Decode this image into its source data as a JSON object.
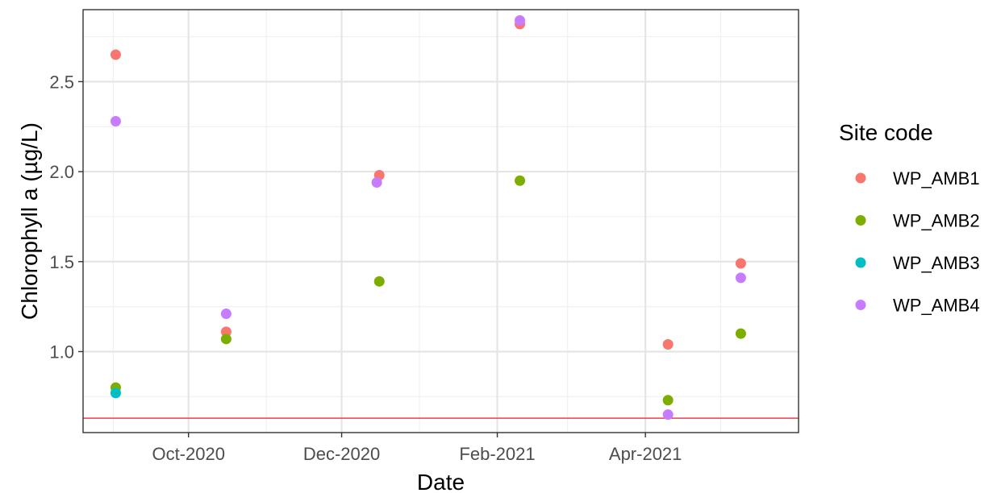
{
  "chart_data": {
    "type": "scatter",
    "xlabel": "Date",
    "ylabel": "Chlorophyll a (µg/L)",
    "x_tick_labels": [
      {
        "date": "2020-10-01",
        "label": "Oct-2020"
      },
      {
        "date": "2020-12-01",
        "label": "Dec-2020"
      },
      {
        "date": "2021-02-01",
        "label": "Feb-2021"
      },
      {
        "date": "2021-04-01",
        "label": "Apr-2021"
      }
    ],
    "x_minor_grid": [
      "2020-09-01",
      "2020-11-01",
      "2021-01-01",
      "2021-03-01",
      "2021-05-01"
    ],
    "xlim": [
      "2020-08-20",
      "2021-06-01"
    ],
    "y_ticks": [
      {
        "value": 1.0,
        "label": "1.0"
      },
      {
        "value": 1.5,
        "label": "1.5"
      },
      {
        "value": 2.0,
        "label": "2.0"
      },
      {
        "value": 2.5,
        "label": "2.5"
      }
    ],
    "y_minor_grid": [
      0.75,
      1.25,
      1.75,
      2.25,
      2.75
    ],
    "ylim": [
      0.55,
      2.9
    ],
    "grid": true,
    "legend": {
      "title": "Site code",
      "position": "right"
    },
    "reference_line": {
      "y": 0.63,
      "color": "#e8414b"
    },
    "series": [
      {
        "name": "WP_AMB1",
        "color": "#F8766D",
        "points": [
          {
            "x": "2020-09-02",
            "y": 2.65
          },
          {
            "x": "2020-10-16",
            "y": 1.11
          },
          {
            "x": "2020-12-16",
            "y": 1.98
          },
          {
            "x": "2021-02-10",
            "y": 2.82
          },
          {
            "x": "2021-04-10",
            "y": 1.04
          },
          {
            "x": "2021-05-09",
            "y": 1.49
          }
        ]
      },
      {
        "name": "WP_AMB2",
        "color": "#7CAE00",
        "points": [
          {
            "x": "2020-09-02",
            "y": 0.8
          },
          {
            "x": "2020-10-16",
            "y": 1.07
          },
          {
            "x": "2020-12-16",
            "y": 1.39
          },
          {
            "x": "2021-02-10",
            "y": 1.95
          },
          {
            "x": "2021-04-10",
            "y": 0.73
          },
          {
            "x": "2021-05-09",
            "y": 1.1
          }
        ]
      },
      {
        "name": "WP_AMB3",
        "color": "#00BFC4",
        "points": [
          {
            "x": "2020-09-02",
            "y": 0.77
          }
        ]
      },
      {
        "name": "WP_AMB4",
        "color": "#C77CFF",
        "points": [
          {
            "x": "2020-09-02",
            "y": 2.28
          },
          {
            "x": "2020-10-16",
            "y": 1.21
          },
          {
            "x": "2020-12-15",
            "y": 1.94
          },
          {
            "x": "2021-02-10",
            "y": 2.84
          },
          {
            "x": "2021-04-10",
            "y": 0.65
          },
          {
            "x": "2021-05-09",
            "y": 1.41
          }
        ]
      }
    ]
  }
}
